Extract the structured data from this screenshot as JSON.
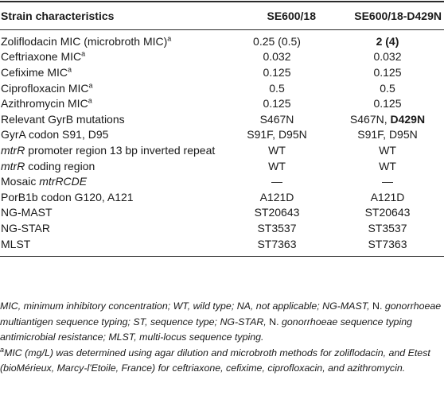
{
  "header": {
    "col1": "Strain characteristics",
    "col2": "SE600/18",
    "col3": "SE600/18-D429N"
  },
  "rows": {
    "zoliflodacin": {
      "label": "Zoliflodacin MIC (microbroth MIC)",
      "sup": "a",
      "v1": "0.25 (0.5)",
      "v2": "2 (4)"
    },
    "ceftriaxone": {
      "label": "Ceftriaxone MIC",
      "sup": "a",
      "v1": "0.032",
      "v2": "0.032"
    },
    "cefixime": {
      "label": "Cefixime MIC",
      "sup": "a",
      "v1": "0.125",
      "v2": "0.125"
    },
    "ciprofloxacin": {
      "label": "Ciprofloxacin MIC",
      "sup": "a",
      "v1": "0.5",
      "v2": "0.5"
    },
    "azithromycin": {
      "label": "Azithromycin MIC",
      "sup": "a",
      "v1": "0.125",
      "v2": "0.125"
    },
    "gyrb": {
      "label": "Relevant GyrB mutations",
      "v1": "S467N",
      "v2a": "S467N, ",
      "v2b": "D429N"
    },
    "gyra": {
      "label": "GyrA codon S91, D95",
      "v1": "S91F, D95N",
      "v2": "S91F, D95N"
    },
    "mtrr_promoter": {
      "label_it": "mtrR",
      "label_rest": " promoter region 13 bp inverted repeat",
      "v1": "WT",
      "v2": "WT"
    },
    "mtrr_coding": {
      "label_it": "mtrR",
      "label_rest": " coding region",
      "v1": "WT",
      "v2": "WT"
    },
    "mosaic": {
      "label_plain": "Mosaic ",
      "label_it": "mtrRCDE",
      "v1": "—",
      "v2": "—"
    },
    "porb": {
      "label": "PorB1b codon G120, A121",
      "v1": "A121D",
      "v2": "A121D"
    },
    "ngmast": {
      "label": "NG-MAST",
      "v1": "ST20643",
      "v2": "ST20643"
    },
    "ngstar": {
      "label": "NG-STAR",
      "v1": "ST3537",
      "v2": "ST3537"
    },
    "mlst": {
      "label": "MLST",
      "v1": "ST7363",
      "v2": "ST7363"
    }
  },
  "notes": {
    "abbr_1": "MIC, minimum inhibitory concentration; WT, wild type; NA, not applicable; NG-MAST, ",
    "abbr_n1": "N.",
    "abbr_2": " gonorrhoeae multiantigen sequence typing; ST, sequence type; NG-STAR, ",
    "abbr_n2": "N.",
    "abbr_3": " gonorrhoeae sequence typing antimicrobial resistance; MLST, multi-locus sequence typing.",
    "footnote_sup": "a",
    "footnote": "MIC (mg/L) was determined using agar dilution and microbroth methods for zoliflodacin, and Etest (bioMérieux, Marcy-l'Etoile, France) for ceftriaxone, cefixime, ciprofloxacin, and azithromycin."
  }
}
